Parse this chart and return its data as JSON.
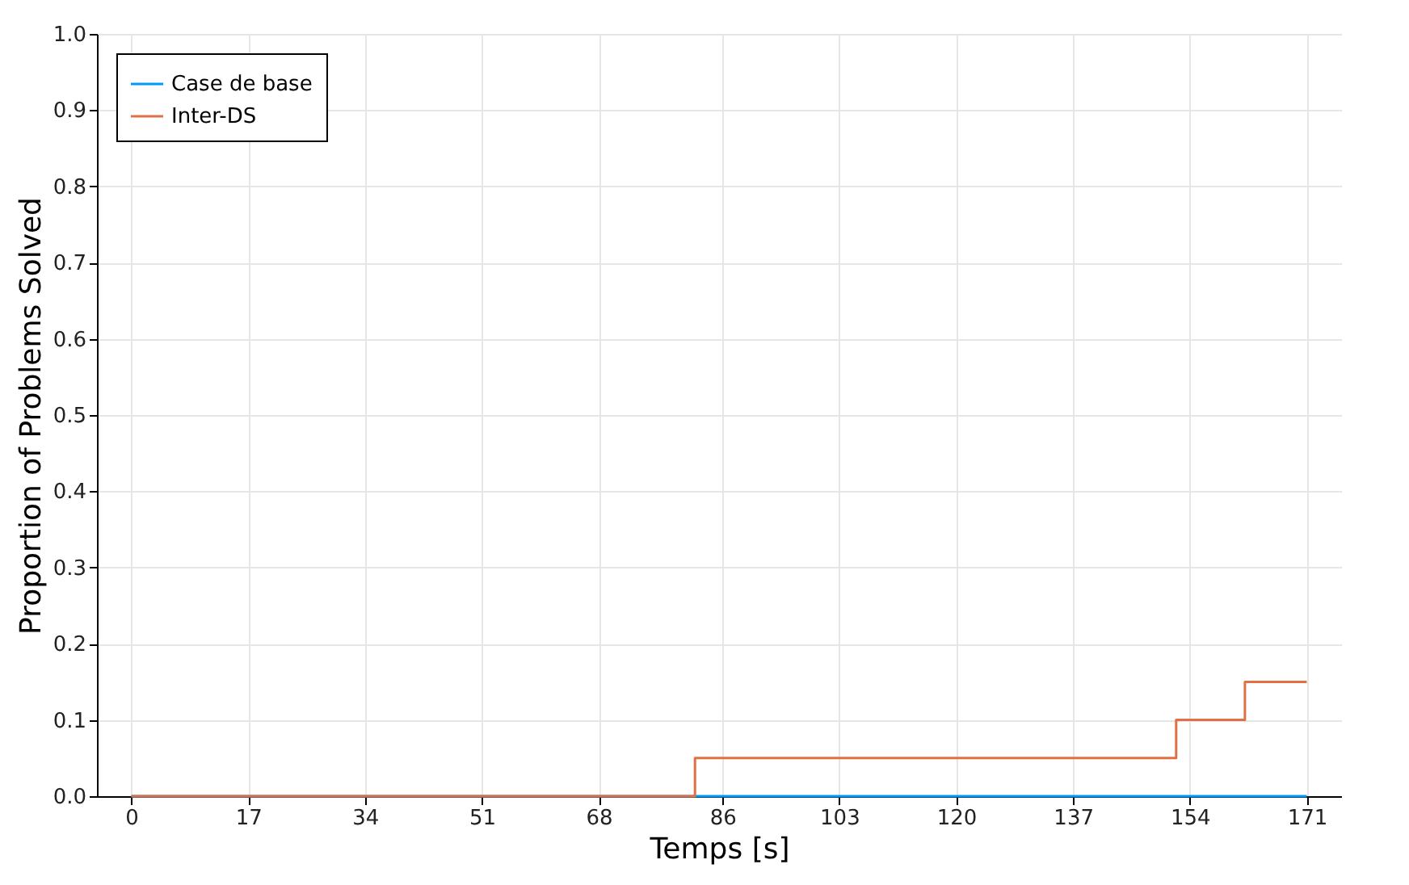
{
  "chart_data": {
    "type": "step",
    "xlabel": "Temps [s]",
    "ylabel": "Proportion of Problems Solved",
    "series": [
      {
        "name": "Case de base",
        "color": "#009afa",
        "x": [
          0,
          171
        ],
        "values": [
          0,
          0
        ]
      },
      {
        "name": "Inter-DS",
        "color": "#e26f46",
        "x": [
          0,
          82,
          152,
          162,
          171
        ],
        "values": [
          0,
          0.05,
          0.1,
          0.15,
          0.15
        ]
      }
    ],
    "xlim": [
      -5,
      176
    ],
    "xticks": [
      0,
      17,
      34,
      51,
      68,
      86,
      103,
      120,
      137,
      154,
      171
    ],
    "ylim": [
      0,
      1
    ],
    "yticks": [
      {
        "value": 0,
        "label": "0.0"
      },
      0.1,
      0.2,
      0.3,
      0.4,
      0.5,
      0.6,
      0.7,
      0.8,
      0.9,
      {
        "value": 1,
        "label": "1.0"
      }
    ],
    "grid": true,
    "legend": "top left"
  }
}
